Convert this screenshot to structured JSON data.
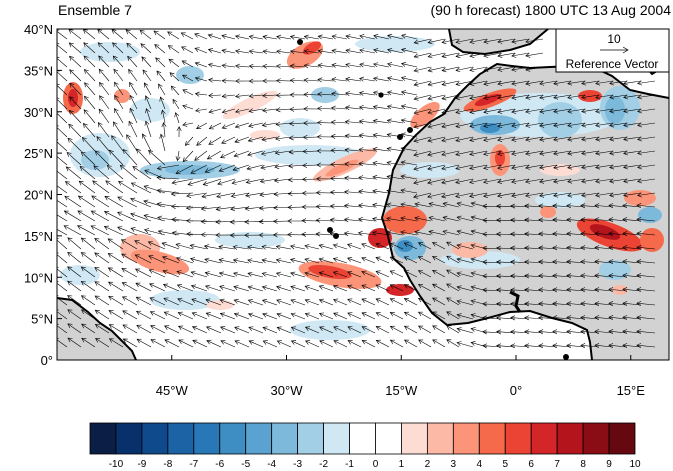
{
  "header": {
    "left_title": "Ensemble 7",
    "right_title": "(90 h forecast) 1800 UTC 13 Aug 2004"
  },
  "map": {
    "lon_range": [
      -60,
      20
    ],
    "lat_range": [
      0,
      40
    ],
    "lat_ticks": [
      {
        "value": 0,
        "label": "0°"
      },
      {
        "value": 5,
        "label": "5°N"
      },
      {
        "value": 10,
        "label": "10°N"
      },
      {
        "value": 15,
        "label": "15°N"
      },
      {
        "value": 20,
        "label": "20°N"
      },
      {
        "value": 25,
        "label": "25°N"
      },
      {
        "value": 30,
        "label": "30°N"
      },
      {
        "value": 35,
        "label": "35°N"
      },
      {
        "value": 40,
        "label": "40°N"
      }
    ],
    "lon_ticks": [
      {
        "value": -45,
        "label": "45°W"
      },
      {
        "value": -30,
        "label": "30°W"
      },
      {
        "value": -15,
        "label": "15°W"
      },
      {
        "value": 0,
        "label": "0°"
      },
      {
        "value": 15,
        "label": "15°E"
      }
    ],
    "reference_vector": {
      "magnitude": "10",
      "label": "Reference Vector"
    },
    "land_color": "#d2d2d2",
    "coast_color": "#000000"
  },
  "colorbar": {
    "levels": [
      "-10",
      "-9",
      "-8",
      "-7",
      "-6",
      "-5",
      "-4",
      "-3",
      "-2",
      "-1",
      "0",
      "1",
      "2",
      "3",
      "4",
      "5",
      "6",
      "7",
      "8",
      "9",
      "10"
    ],
    "colors": [
      "#0a1e46",
      "#08306b",
      "#0e4a8c",
      "#1c63a6",
      "#2878b8",
      "#3e8ec4",
      "#5aa2d0",
      "#7cb9da",
      "#a2cfe5",
      "#d0e8f4",
      "#ffffff",
      "#ffffff",
      "#fddcd4",
      "#fcb9a6",
      "#fb9478",
      "#f66a4c",
      "#ec4434",
      "#d42628",
      "#b4141c",
      "#8a0c14",
      "#650810"
    ]
  }
}
